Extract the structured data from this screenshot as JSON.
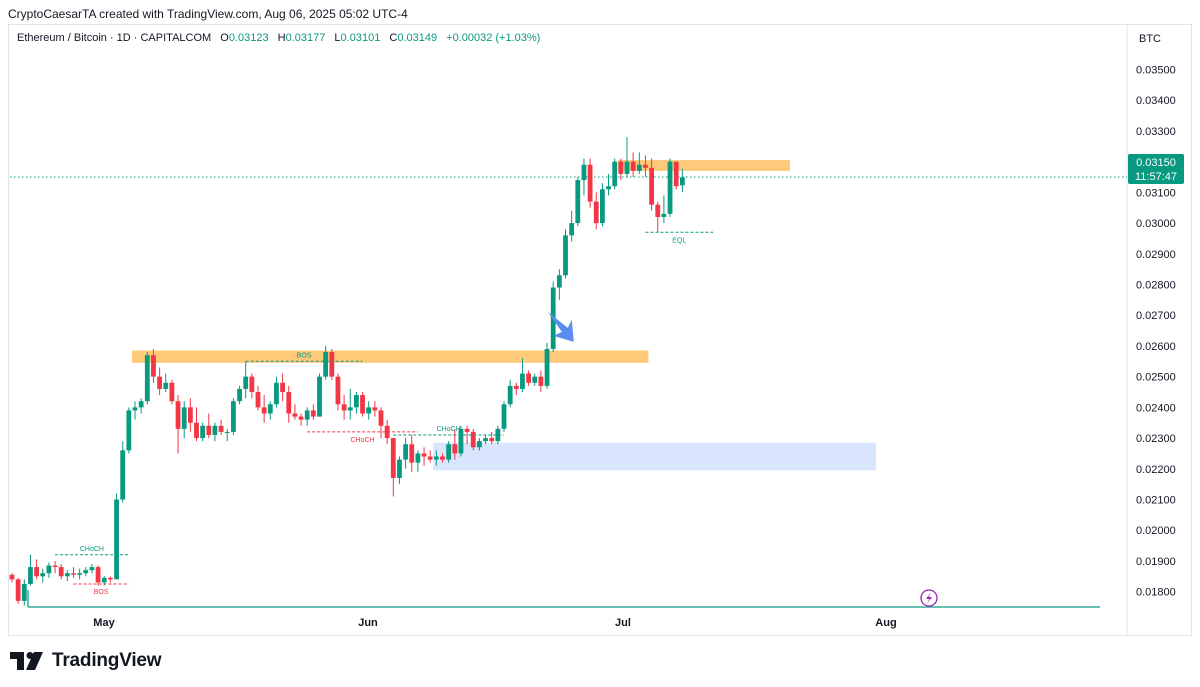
{
  "header": {
    "credit": "CryptoCaesarTA created with TradingView.com, Aug 06, 2025 05:02 UTC-4"
  },
  "legend": {
    "symbol": "Ethereum / Bitcoin · 1D · CAPITALCOM",
    "o_label": "O",
    "o_value": "0.03123",
    "h_label": "H",
    "h_value": "0.03177",
    "l_label": "L",
    "l_value": "0.03101",
    "c_label": "C",
    "c_value": "0.03149",
    "change": "+0.00032 (+1.03%)"
  },
  "axis": {
    "currency": "BTC"
  },
  "price_badge": {
    "price": "0.03150",
    "countdown": "11:57:47"
  },
  "brand": {
    "name": "TradingView"
  },
  "colors": {
    "up": "#089981",
    "down": "#f23645",
    "zone_supply": "#ffb74d",
    "zone_demand": "#d6e4fd",
    "arrow": "#5b8def",
    "grid": "#e0e3eb"
  },
  "chart_data": {
    "type": "candlestick",
    "x_ticks": [
      "May",
      "Jun",
      "Jul",
      "Aug"
    ],
    "y_ticks": [
      "0.03500",
      "0.03400",
      "0.03300",
      "0.03200",
      "0.03100",
      "0.03000",
      "0.02900",
      "0.02800",
      "0.02700",
      "0.02600",
      "0.02500",
      "0.02400",
      "0.02300",
      "0.02200",
      "0.02100",
      "0.02000",
      "0.01900",
      "0.01800"
    ],
    "ylim": [
      0.0175,
      0.0357
    ],
    "last_price": 0.0315,
    "candles": [
      {
        "o": 0.01855,
        "h": 0.0186,
        "l": 0.0183,
        "c": 0.0184
      },
      {
        "o": 0.0184,
        "h": 0.01845,
        "l": 0.0176,
        "c": 0.0177
      },
      {
        "o": 0.0177,
        "h": 0.0184,
        "l": 0.01755,
        "c": 0.01825
      },
      {
        "o": 0.01825,
        "h": 0.0192,
        "l": 0.0182,
        "c": 0.0188
      },
      {
        "o": 0.0188,
        "h": 0.01905,
        "l": 0.0184,
        "c": 0.0185
      },
      {
        "o": 0.0185,
        "h": 0.01875,
        "l": 0.0183,
        "c": 0.0186
      },
      {
        "o": 0.0186,
        "h": 0.01895,
        "l": 0.01845,
        "c": 0.01885
      },
      {
        "o": 0.01885,
        "h": 0.019,
        "l": 0.0186,
        "c": 0.0188
      },
      {
        "o": 0.0188,
        "h": 0.0189,
        "l": 0.0184,
        "c": 0.0185
      },
      {
        "o": 0.0185,
        "h": 0.0187,
        "l": 0.01835,
        "c": 0.0186
      },
      {
        "o": 0.0186,
        "h": 0.0188,
        "l": 0.01845,
        "c": 0.01855
      },
      {
        "o": 0.01855,
        "h": 0.01875,
        "l": 0.0184,
        "c": 0.0186
      },
      {
        "o": 0.0186,
        "h": 0.0188,
        "l": 0.0185,
        "c": 0.0187
      },
      {
        "o": 0.0187,
        "h": 0.0189,
        "l": 0.0186,
        "c": 0.0188
      },
      {
        "o": 0.0188,
        "h": 0.01885,
        "l": 0.0182,
        "c": 0.0183
      },
      {
        "o": 0.0183,
        "h": 0.0185,
        "l": 0.0182,
        "c": 0.01845
      },
      {
        "o": 0.01845,
        "h": 0.0185,
        "l": 0.0183,
        "c": 0.0184
      },
      {
        "o": 0.0184,
        "h": 0.0212,
        "l": 0.0184,
        "c": 0.021
      },
      {
        "o": 0.021,
        "h": 0.0229,
        "l": 0.0209,
        "c": 0.0226
      },
      {
        "o": 0.0226,
        "h": 0.024,
        "l": 0.0225,
        "c": 0.0239
      },
      {
        "o": 0.0239,
        "h": 0.0242,
        "l": 0.0236,
        "c": 0.024
      },
      {
        "o": 0.024,
        "h": 0.0243,
        "l": 0.0238,
        "c": 0.0242
      },
      {
        "o": 0.0242,
        "h": 0.0258,
        "l": 0.0241,
        "c": 0.0257
      },
      {
        "o": 0.0257,
        "h": 0.0259,
        "l": 0.0248,
        "c": 0.025
      },
      {
        "o": 0.025,
        "h": 0.0253,
        "l": 0.0244,
        "c": 0.0246
      },
      {
        "o": 0.0246,
        "h": 0.0251,
        "l": 0.0245,
        "c": 0.0248
      },
      {
        "o": 0.0248,
        "h": 0.0249,
        "l": 0.0241,
        "c": 0.0242
      },
      {
        "o": 0.0242,
        "h": 0.0244,
        "l": 0.0225,
        "c": 0.0233
      },
      {
        "o": 0.0233,
        "h": 0.0242,
        "l": 0.023,
        "c": 0.024
      },
      {
        "o": 0.024,
        "h": 0.0243,
        "l": 0.0232,
        "c": 0.0235
      },
      {
        "o": 0.0235,
        "h": 0.024,
        "l": 0.0229,
        "c": 0.023
      },
      {
        "o": 0.023,
        "h": 0.0235,
        "l": 0.0229,
        "c": 0.0234
      },
      {
        "o": 0.0234,
        "h": 0.0238,
        "l": 0.023,
        "c": 0.0231
      },
      {
        "o": 0.0231,
        "h": 0.0235,
        "l": 0.0229,
        "c": 0.0234
      },
      {
        "o": 0.0234,
        "h": 0.0236,
        "l": 0.0231,
        "c": 0.0232
      },
      {
        "o": 0.0232,
        "h": 0.0233,
        "l": 0.0229,
        "c": 0.0232
      },
      {
        "o": 0.0232,
        "h": 0.0243,
        "l": 0.0231,
        "c": 0.0242
      },
      {
        "o": 0.0242,
        "h": 0.0247,
        "l": 0.0241,
        "c": 0.0246
      },
      {
        "o": 0.0246,
        "h": 0.0255,
        "l": 0.0243,
        "c": 0.025
      },
      {
        "o": 0.025,
        "h": 0.0251,
        "l": 0.0243,
        "c": 0.0245
      },
      {
        "o": 0.0245,
        "h": 0.0247,
        "l": 0.0239,
        "c": 0.024
      },
      {
        "o": 0.024,
        "h": 0.0244,
        "l": 0.0235,
        "c": 0.0238
      },
      {
        "o": 0.0238,
        "h": 0.0242,
        "l": 0.0236,
        "c": 0.0241
      },
      {
        "o": 0.0241,
        "h": 0.025,
        "l": 0.024,
        "c": 0.0248
      },
      {
        "o": 0.0248,
        "h": 0.0251,
        "l": 0.0242,
        "c": 0.0245
      },
      {
        "o": 0.0245,
        "h": 0.0247,
        "l": 0.0235,
        "c": 0.0238
      },
      {
        "o": 0.0238,
        "h": 0.0241,
        "l": 0.0236,
        "c": 0.0237
      },
      {
        "o": 0.0237,
        "h": 0.0238,
        "l": 0.0234,
        "c": 0.0236
      },
      {
        "o": 0.0236,
        "h": 0.024,
        "l": 0.0234,
        "c": 0.0239
      },
      {
        "o": 0.0239,
        "h": 0.0241,
        "l": 0.0236,
        "c": 0.0237
      },
      {
        "o": 0.0237,
        "h": 0.0251,
        "l": 0.0237,
        "c": 0.025
      },
      {
        "o": 0.025,
        "h": 0.026,
        "l": 0.0249,
        "c": 0.0258
      },
      {
        "o": 0.0258,
        "h": 0.0259,
        "l": 0.0249,
        "c": 0.025
      },
      {
        "o": 0.025,
        "h": 0.0251,
        "l": 0.0239,
        "c": 0.0241
      },
      {
        "o": 0.0241,
        "h": 0.0244,
        "l": 0.0236,
        "c": 0.0239
      },
      {
        "o": 0.0239,
        "h": 0.0246,
        "l": 0.0236,
        "c": 0.024
      },
      {
        "o": 0.024,
        "h": 0.0245,
        "l": 0.0238,
        "c": 0.0244
      },
      {
        "o": 0.0244,
        "h": 0.0245,
        "l": 0.0237,
        "c": 0.0238
      },
      {
        "o": 0.0238,
        "h": 0.0242,
        "l": 0.0236,
        "c": 0.024
      },
      {
        "o": 0.024,
        "h": 0.0242,
        "l": 0.0237,
        "c": 0.0239
      },
      {
        "o": 0.0239,
        "h": 0.024,
        "l": 0.023,
        "c": 0.0234
      },
      {
        "o": 0.0234,
        "h": 0.0236,
        "l": 0.0228,
        "c": 0.023
      },
      {
        "o": 0.023,
        "h": 0.023,
        "l": 0.0211,
        "c": 0.0217
      },
      {
        "o": 0.0217,
        "h": 0.0224,
        "l": 0.0215,
        "c": 0.0223
      },
      {
        "o": 0.0223,
        "h": 0.023,
        "l": 0.022,
        "c": 0.0228
      },
      {
        "o": 0.0228,
        "h": 0.0231,
        "l": 0.0219,
        "c": 0.0222
      },
      {
        "o": 0.0222,
        "h": 0.0226,
        "l": 0.0219,
        "c": 0.0225
      },
      {
        "o": 0.0225,
        "h": 0.0227,
        "l": 0.0221,
        "c": 0.0224
      },
      {
        "o": 0.0224,
        "h": 0.0226,
        "l": 0.0222,
        "c": 0.0223
      },
      {
        "o": 0.0223,
        "h": 0.0226,
        "l": 0.0221,
        "c": 0.0224
      },
      {
        "o": 0.0224,
        "h": 0.0225,
        "l": 0.0222,
        "c": 0.0223
      },
      {
        "o": 0.0223,
        "h": 0.0229,
        "l": 0.0222,
        "c": 0.0228
      },
      {
        "o": 0.0228,
        "h": 0.0233,
        "l": 0.0223,
        "c": 0.0225
      },
      {
        "o": 0.0225,
        "h": 0.0234,
        "l": 0.0224,
        "c": 0.0233
      },
      {
        "o": 0.0233,
        "h": 0.0234,
        "l": 0.0228,
        "c": 0.0232
      },
      {
        "o": 0.0232,
        "h": 0.0233,
        "l": 0.0226,
        "c": 0.0227
      },
      {
        "o": 0.0227,
        "h": 0.023,
        "l": 0.0226,
        "c": 0.0229
      },
      {
        "o": 0.0229,
        "h": 0.0231,
        "l": 0.0228,
        "c": 0.023
      },
      {
        "o": 0.023,
        "h": 0.0232,
        "l": 0.0228,
        "c": 0.0229
      },
      {
        "o": 0.0229,
        "h": 0.0234,
        "l": 0.0228,
        "c": 0.0233
      },
      {
        "o": 0.0233,
        "h": 0.0242,
        "l": 0.0232,
        "c": 0.0241
      },
      {
        "o": 0.0241,
        "h": 0.0249,
        "l": 0.024,
        "c": 0.0247
      },
      {
        "o": 0.0247,
        "h": 0.0248,
        "l": 0.0244,
        "c": 0.0246
      },
      {
        "o": 0.0246,
        "h": 0.0256,
        "l": 0.0245,
        "c": 0.0251
      },
      {
        "o": 0.0251,
        "h": 0.0252,
        "l": 0.0247,
        "c": 0.0248
      },
      {
        "o": 0.0248,
        "h": 0.0251,
        "l": 0.0247,
        "c": 0.025
      },
      {
        "o": 0.025,
        "h": 0.0252,
        "l": 0.0245,
        "c": 0.0247
      },
      {
        "o": 0.0247,
        "h": 0.0261,
        "l": 0.0246,
        "c": 0.0259
      },
      {
        "o": 0.0259,
        "h": 0.0281,
        "l": 0.0258,
        "c": 0.0279
      },
      {
        "o": 0.0279,
        "h": 0.0285,
        "l": 0.0275,
        "c": 0.0283
      },
      {
        "o": 0.0283,
        "h": 0.0298,
        "l": 0.0282,
        "c": 0.0296
      },
      {
        "o": 0.0296,
        "h": 0.0304,
        "l": 0.0294,
        "c": 0.03
      },
      {
        "o": 0.03,
        "h": 0.0315,
        "l": 0.0299,
        "c": 0.0314
      },
      {
        "o": 0.0314,
        "h": 0.0321,
        "l": 0.0309,
        "c": 0.0319
      },
      {
        "o": 0.0319,
        "h": 0.0321,
        "l": 0.0305,
        "c": 0.0307
      },
      {
        "o": 0.0307,
        "h": 0.031,
        "l": 0.0298,
        "c": 0.03
      },
      {
        "o": 0.03,
        "h": 0.0313,
        "l": 0.0299,
        "c": 0.0311
      },
      {
        "o": 0.0311,
        "h": 0.0316,
        "l": 0.0309,
        "c": 0.0312
      },
      {
        "o": 0.0312,
        "h": 0.0321,
        "l": 0.0311,
        "c": 0.032
      },
      {
        "o": 0.032,
        "h": 0.0321,
        "l": 0.0314,
        "c": 0.0316
      },
      {
        "o": 0.0316,
        "h": 0.0328,
        "l": 0.0315,
        "c": 0.032
      },
      {
        "o": 0.032,
        "h": 0.0323,
        "l": 0.0315,
        "c": 0.0317
      },
      {
        "o": 0.0317,
        "h": 0.0323,
        "l": 0.0316,
        "c": 0.0319
      },
      {
        "o": 0.0319,
        "h": 0.0322,
        "l": 0.0315,
        "c": 0.0318
      },
      {
        "o": 0.0318,
        "h": 0.0321,
        "l": 0.0304,
        "c": 0.0306
      },
      {
        "o": 0.0306,
        "h": 0.0307,
        "l": 0.0297,
        "c": 0.0302
      },
      {
        "o": 0.0302,
        "h": 0.0309,
        "l": 0.03,
        "c": 0.0303
      },
      {
        "o": 0.0303,
        "h": 0.0321,
        "l": 0.0302,
        "c": 0.032
      },
      {
        "o": 0.032,
        "h": 0.032,
        "l": 0.0311,
        "c": 0.0312
      },
      {
        "o": 0.03123,
        "h": 0.03177,
        "l": 0.03101,
        "c": 0.03149
      }
    ],
    "zones": [
      {
        "name": "supply-zone-lower",
        "y1": 0.02545,
        "y2": 0.02585,
        "i1": 20,
        "i2": 103
      },
      {
        "name": "supply-zone-upper",
        "y1": 0.0317,
        "y2": 0.03205,
        "i1": 99,
        "i2": 126
      },
      {
        "name": "demand-zone",
        "y1": 0.02195,
        "y2": 0.02285,
        "i1": 69,
        "i2": 140
      }
    ],
    "annotations": [
      {
        "label": "CHoCH",
        "color": "#089981",
        "price": 0.0192,
        "i1": 7,
        "i2": 19,
        "above": true
      },
      {
        "label": "BOS",
        "color": "#f23645",
        "price": 0.01825,
        "i1": 10,
        "i2": 19,
        "above": false
      },
      {
        "label": "BOS",
        "color": "#089981",
        "price": 0.0255,
        "i1": 38,
        "i2": 57,
        "above": true
      },
      {
        "label": "CHoCH",
        "color": "#f23645",
        "price": 0.0232,
        "i1": 48,
        "i2": 66,
        "above": false
      },
      {
        "label": "CHoCH",
        "color": "#089981",
        "price": 0.0231,
        "i1": 62,
        "i2": 80,
        "above": true
      },
      {
        "label": "EQL",
        "color": "#089981",
        "price": 0.0297,
        "i1": 103,
        "i2": 114,
        "above": false
      }
    ],
    "arrow_index": 92
  }
}
